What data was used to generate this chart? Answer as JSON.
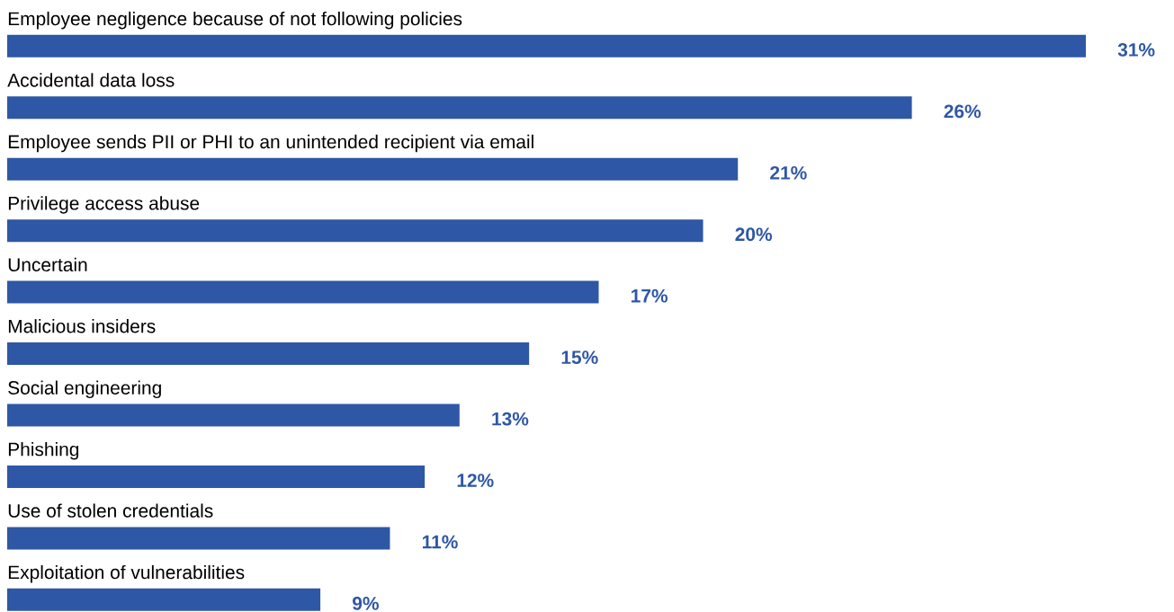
{
  "chart_data": {
    "type": "bar",
    "orientation": "horizontal",
    "categories": [
      "Employee negligence because of not following policies",
      "Accidental data loss",
      "Employee sends PII or PHI to an unintended recipient via email",
      "Privilege access abuse",
      "Uncertain",
      "Malicious insiders",
      "Social engineering",
      "Phishing",
      "Use of stolen credentials",
      "Exploitation of vulnerabilities"
    ],
    "values": [
      31,
      26,
      21,
      20,
      17,
      15,
      13,
      12,
      11,
      9
    ],
    "value_labels": [
      "31%",
      "26%",
      "21%",
      "20%",
      "17%",
      "15%",
      "13%",
      "12%",
      "11%",
      "9%"
    ],
    "color": "#2e57a5"
  }
}
